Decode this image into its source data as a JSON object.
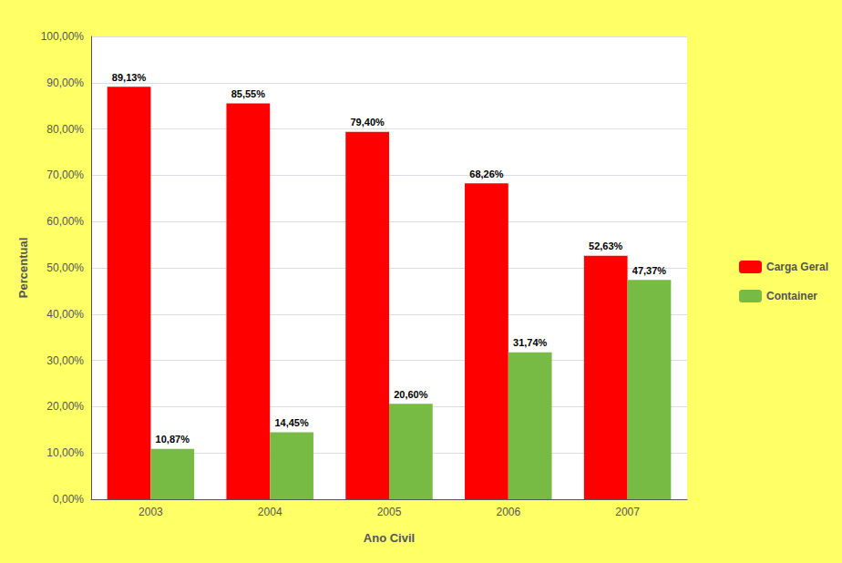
{
  "chart_data": {
    "type": "bar",
    "categories": [
      "2003",
      "2004",
      "2005",
      "2006",
      "2007"
    ],
    "series": [
      {
        "name": "Carga Geral",
        "color": "#FF0000",
        "values": [
          89.13,
          85.55,
          79.4,
          68.26,
          52.63
        ],
        "value_labels": [
          "89,13%",
          "85,55%",
          "79,40%",
          "68,26%",
          "52,63%"
        ]
      },
      {
        "name": "Container",
        "color": "#77BB44",
        "values": [
          10.87,
          14.45,
          20.6,
          31.74,
          47.37
        ],
        "value_labels": [
          "10,87%",
          "14,45%",
          "20,60%",
          "31,74%",
          "47,37%"
        ]
      }
    ],
    "xlabel": "Ano Civil",
    "ylabel": "Percentual",
    "ylim": [
      0,
      100
    ],
    "yticks": [
      {
        "value": 0,
        "label": "0,00%"
      },
      {
        "value": 10,
        "label": "10,00%"
      },
      {
        "value": 20,
        "label": "20,00%"
      },
      {
        "value": 30,
        "label": "30,00%"
      },
      {
        "value": 40,
        "label": "40,00%"
      },
      {
        "value": 50,
        "label": "50,00%"
      },
      {
        "value": 60,
        "label": "60,00%"
      },
      {
        "value": 70,
        "label": "70,00%"
      },
      {
        "value": 80,
        "label": "80,00%"
      },
      {
        "value": 90,
        "label": "90,00%"
      },
      {
        "value": 100,
        "label": "100,00%"
      }
    ],
    "grid": true,
    "legend": "right",
    "data_labels": true
  }
}
